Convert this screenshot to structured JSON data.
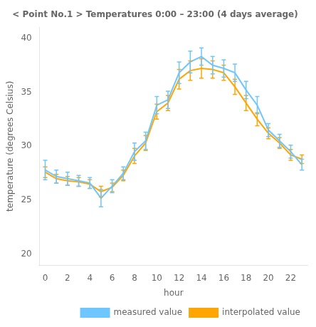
{
  "chart_data": {
    "type": "line",
    "title": "< Point No.1 > Temperatures 0:00 – 23:00 (4 days average)",
    "xlabel": "hour",
    "ylabel": "temperature (degrees Celsius)",
    "x": [
      0,
      1,
      2,
      3,
      4,
      5,
      6,
      7,
      8,
      9,
      10,
      11,
      12,
      13,
      14,
      15,
      16,
      17,
      18,
      19,
      20,
      21,
      22,
      23
    ],
    "series": [
      {
        "name": "measured value",
        "color": "#6EC6FF",
        "values": [
          27.8,
          27.2,
          27.0,
          26.8,
          26.6,
          25.2,
          26.3,
          27.5,
          29.5,
          30.5,
          33.8,
          34.3,
          36.8,
          37.8,
          38.3,
          37.5,
          37.2,
          36.8,
          35.2,
          33.8,
          31.5,
          30.5,
          29.5,
          28.3
        ],
        "errors": [
          0.9,
          0.6,
          0.6,
          0.5,
          0.5,
          0.8,
          0.6,
          0.6,
          0.8,
          0.8,
          0.8,
          0.8,
          1.0,
          1.0,
          0.8,
          0.8,
          0.8,
          0.8,
          0.8,
          0.8,
          0.6,
          0.6,
          0.6,
          0.5
        ]
      },
      {
        "name": "interpolated value",
        "color": "#FFA500",
        "values": [
          27.6,
          27.0,
          26.8,
          26.7,
          26.5,
          25.8,
          26.2,
          27.3,
          29.1,
          30.3,
          33.2,
          34.0,
          36.2,
          37.0,
          37.2,
          37.1,
          36.8,
          35.5,
          34.0,
          32.5,
          31.2,
          30.3,
          29.2,
          28.8
        ],
        "errors": [
          0.5,
          0.4,
          0.4,
          0.4,
          0.4,
          0.5,
          0.4,
          0.5,
          0.7,
          0.7,
          0.7,
          0.7,
          0.9,
          0.9,
          0.9,
          0.8,
          0.7,
          0.7,
          0.7,
          0.6,
          0.5,
          0.5,
          0.5,
          0.4
        ]
      }
    ],
    "xlim": [
      -0.5,
      23.5
    ],
    "xticks": [
      0,
      2,
      4,
      6,
      8,
      10,
      12,
      14,
      16,
      18,
      20,
      22
    ],
    "ylim": [
      19,
      41
    ],
    "yticks": [
      20,
      25,
      30,
      35,
      40
    ],
    "grid": false,
    "legend": "lower right"
  }
}
